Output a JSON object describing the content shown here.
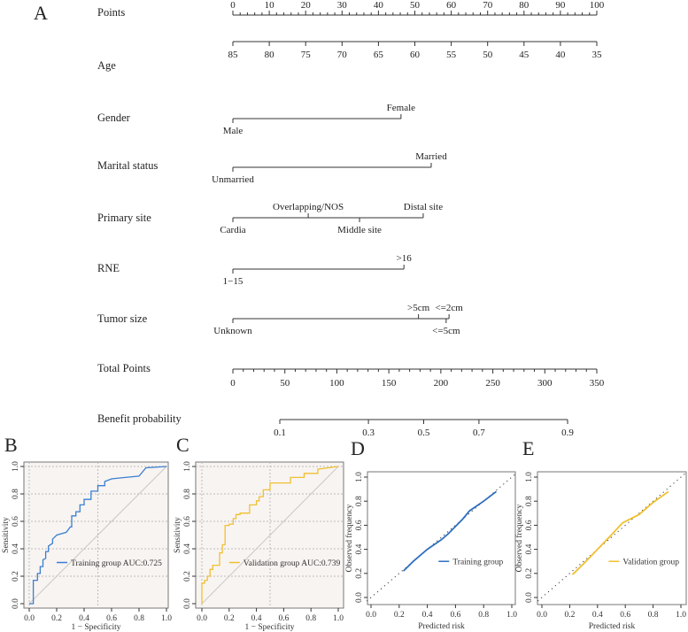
{
  "panel_labels": {
    "A": "A",
    "B": "B",
    "C": "C",
    "D": "D",
    "E": "E"
  },
  "chart_data": [
    {
      "type": "nomogram",
      "panel": "A",
      "rows": [
        {
          "label": "Points",
          "kind": "points",
          "ticks": [
            0,
            10,
            20,
            30,
            40,
            50,
            60,
            70,
            80,
            90,
            100
          ],
          "minor_step": 2
        },
        {
          "label": "Age",
          "kind": "continuous",
          "ticks": [
            {
              "v": "85",
              "p": 0
            },
            {
              "v": "80",
              "p": 10
            },
            {
              "v": "75",
              "p": 20
            },
            {
              "v": "70",
              "p": 30
            },
            {
              "v": "65",
              "p": 40
            },
            {
              "v": "60",
              "p": 50
            },
            {
              "v": "55",
              "p": 60
            },
            {
              "v": "50",
              "p": 70
            },
            {
              "v": "45",
              "p": 80
            },
            {
              "v": "40",
              "p": 90
            },
            {
              "v": "35",
              "p": 100
            }
          ]
        },
        {
          "label": "Gender",
          "kind": "categorical",
          "levels": [
            {
              "v": "Male",
              "p": 0,
              "pos": "below"
            },
            {
              "v": "Female",
              "p": 46.2,
              "pos": "above"
            }
          ]
        },
        {
          "label": "Marital status",
          "kind": "categorical",
          "levels": [
            {
              "v": "Unmarried",
              "p": 0,
              "pos": "below"
            },
            {
              "v": "Married",
              "p": 54.5,
              "pos": "above"
            }
          ]
        },
        {
          "label": "Primary site",
          "kind": "categorical",
          "levels": [
            {
              "v": "Cardia",
              "p": 0,
              "pos": "below"
            },
            {
              "v": "Overlapping/NOS",
              "p": 20.7,
              "pos": "above"
            },
            {
              "v": "Middle site",
              "p": 34.8,
              "pos": "below"
            },
            {
              "v": "Distal site",
              "p": 52.3,
              "pos": "above"
            }
          ]
        },
        {
          "label": "RNE",
          "kind": "categorical",
          "levels": [
            {
              "v": "1−15",
              "p": 0,
              "pos": "below"
            },
            {
              "v": ">16",
              "p": 47,
              "pos": "above"
            }
          ]
        },
        {
          "label": "Tumor size",
          "kind": "categorical",
          "levels": [
            {
              "v": "Unknown",
              "p": 0,
              "pos": "below"
            },
            {
              "v": ">5cm",
              "p": 51,
              "pos": "above"
            },
            {
              "v": "<=5cm",
              "p": 58.6,
              "pos": "below"
            },
            {
              "v": "<=2cm",
              "p": 59.4,
              "pos": "above"
            }
          ]
        },
        {
          "label": "Total Points",
          "kind": "total",
          "range": [
            0,
            350
          ],
          "ticks": [
            0,
            50,
            100,
            150,
            200,
            250,
            300,
            350
          ],
          "minor_step": 10
        },
        {
          "label": "Benefit probability",
          "kind": "prob",
          "ticks": [
            {
              "v": "0.1",
              "t": 0
            },
            {
              "v": "0.3",
              "t": 0.308
            },
            {
              "v": "0.5",
              "t": 0.5
            },
            {
              "v": "0.7",
              "t": 0.692
            },
            {
              "v": "0.9",
              "t": 1
            }
          ],
          "range_total_points": [
            22,
            290
          ]
        }
      ]
    },
    {
      "type": "line",
      "panel": "B",
      "kind": "roc",
      "xlabel": "1 − Specificity",
      "ylabel": "Sensitivity",
      "xlim": [
        0,
        1
      ],
      "ylim": [
        0,
        1
      ],
      "ticks": [
        "0.0",
        "0.2",
        "0.4",
        "0.6",
        "0.8",
        "1.0"
      ],
      "legend": "Training group AUC:0.725",
      "color": "#3a7fd0",
      "x": [
        0,
        0.03,
        0.03,
        0.06,
        0.06,
        0.08,
        0.08,
        0.1,
        0.1,
        0.12,
        0.12,
        0.14,
        0.14,
        0.17,
        0.17,
        0.2,
        0.27,
        0.3,
        0.31,
        0.31,
        0.34,
        0.34,
        0.37,
        0.37,
        0.4,
        0.4,
        0.45,
        0.45,
        0.5,
        0.5,
        0.55,
        0.55,
        0.6,
        0.7,
        0.8,
        0.85,
        1
      ],
      "y": [
        0,
        0,
        0.17,
        0.17,
        0.22,
        0.22,
        0.27,
        0.27,
        0.32,
        0.33,
        0.38,
        0.38,
        0.42,
        0.44,
        0.47,
        0.5,
        0.52,
        0.56,
        0.56,
        0.64,
        0.64,
        0.67,
        0.67,
        0.72,
        0.72,
        0.76,
        0.76,
        0.82,
        0.82,
        0.86,
        0.86,
        0.89,
        0.91,
        0.92,
        0.93,
        0.99,
        1
      ]
    },
    {
      "type": "line",
      "panel": "C",
      "kind": "roc",
      "xlabel": "1 − Specificity",
      "ylabel": "Sensitivity",
      "xlim": [
        0,
        1
      ],
      "ylim": [
        0,
        1
      ],
      "ticks": [
        "0.0",
        "0.2",
        "0.4",
        "0.6",
        "0.8",
        "1.0"
      ],
      "legend": "Validation group AUC:0.739",
      "color": "#f0c030",
      "x": [
        0,
        0,
        0.02,
        0.02,
        0.04,
        0.04,
        0.06,
        0.06,
        0.08,
        0.08,
        0.13,
        0.13,
        0.15,
        0.15,
        0.17,
        0.17,
        0.2,
        0.2,
        0.23,
        0.23,
        0.25,
        0.25,
        0.28,
        0.28,
        0.35,
        0.35,
        0.4,
        0.4,
        0.42,
        0.42,
        0.45,
        0.45,
        0.5,
        0.5,
        0.65,
        0.65,
        0.75,
        0.75,
        0.85,
        0.85,
        1
      ],
      "y": [
        0,
        0.15,
        0.15,
        0.17,
        0.17,
        0.2,
        0.2,
        0.25,
        0.25,
        0.28,
        0.28,
        0.37,
        0.37,
        0.43,
        0.43,
        0.57,
        0.57,
        0.58,
        0.58,
        0.62,
        0.62,
        0.65,
        0.65,
        0.66,
        0.66,
        0.72,
        0.72,
        0.75,
        0.75,
        0.78,
        0.78,
        0.83,
        0.83,
        0.88,
        0.88,
        0.92,
        0.92,
        0.95,
        0.95,
        0.98,
        1
      ]
    },
    {
      "type": "line",
      "panel": "D",
      "kind": "calibration",
      "xlabel": "Predicted risk",
      "ylabel": "Observed frequency",
      "xlim": [
        0,
        1
      ],
      "ylim": [
        0,
        1
      ],
      "ticks": [
        "0.0",
        "0.2",
        "0.4",
        "0.6",
        "0.8",
        "1.0"
      ],
      "legend": "Training group",
      "color": "#2f6fbf",
      "x": [
        0.23,
        0.3,
        0.4,
        0.5,
        0.55,
        0.6,
        0.65,
        0.7,
        0.8,
        0.89
      ],
      "y": [
        0.22,
        0.3,
        0.4,
        0.48,
        0.53,
        0.59,
        0.65,
        0.72,
        0.8,
        0.88
      ]
    },
    {
      "type": "line",
      "panel": "E",
      "kind": "calibration",
      "xlabel": "Predicted risk",
      "ylabel": "Observed frequency",
      "xlim": [
        0,
        1
      ],
      "ylim": [
        0,
        1
      ],
      "ticks": [
        "0.0",
        "0.2",
        "0.4",
        "0.6",
        "0.8",
        "1.0"
      ],
      "legend": "Validation group",
      "color": "#f0c030",
      "x": [
        0.22,
        0.3,
        0.4,
        0.5,
        0.58,
        0.65,
        0.7,
        0.8,
        0.91
      ],
      "y": [
        0.19,
        0.28,
        0.4,
        0.52,
        0.62,
        0.66,
        0.69,
        0.79,
        0.88
      ]
    }
  ]
}
